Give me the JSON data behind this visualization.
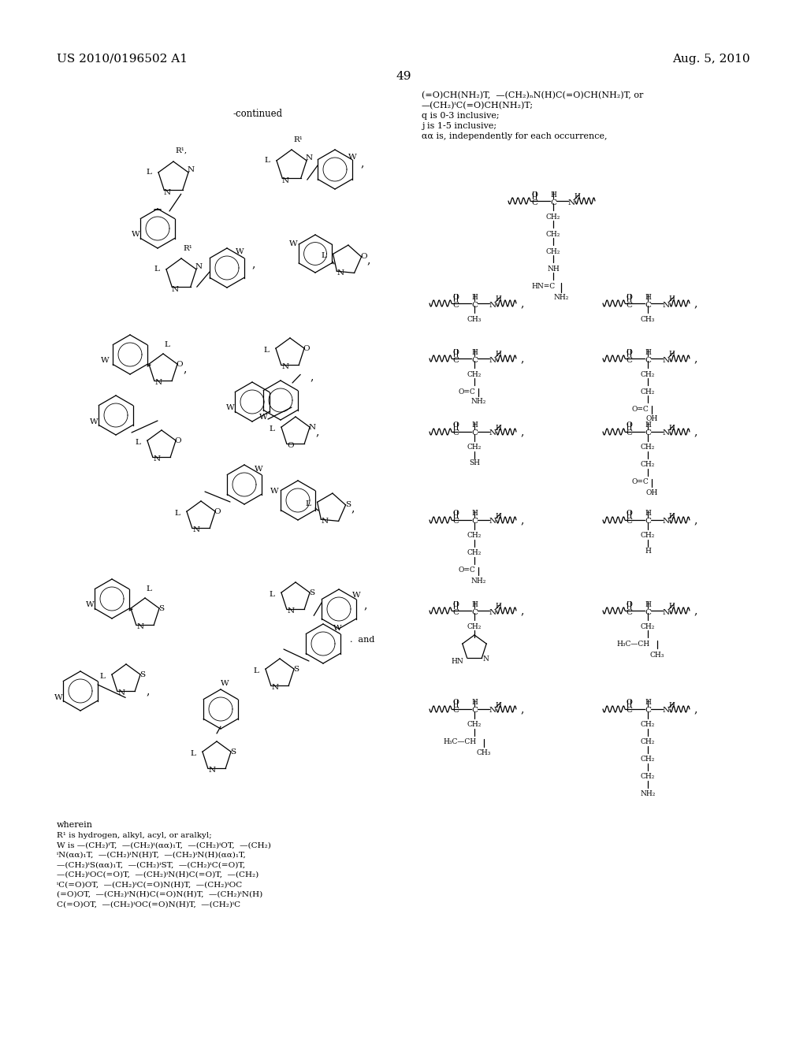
{
  "bg": "#ffffff",
  "header_left": "US 2010/0196502 A1",
  "header_right": "Aug. 5, 2010",
  "page_num": "49",
  "right_top_lines": [
    "(=O)CH(NH₂)T,  —(CH₂)ₙN(H)C(=O)CH(NH₂)T, or",
    "—(CH₂)ⁱC(=O)CH(NH₂)T;",
    "q is 0-3 inclusive;",
    "j is 1-5 inclusive;",
    "αα is, independently for each occurrence,"
  ],
  "bottom_text_lines": [
    "wherein",
    "R¹ is hydrogen, alkyl, acyl, or aralkyl;",
    "W is —(CH₂)ⁱT,  —(CH₂)ⁱ(αα)₁T,  —(CH₂)ⁱOT,  —(CH₂)",
    "ⁱN(αα)₁T,  —(CH₂)ⁱN(H)T,  —(CH₂)ⁱN(H)(αα)₁T,",
    "—(CH₂)ⁱS(αα)₁T,  —(CH₂)ⁱST,  —(CH₂)ⁱC(=O)T,",
    "—(CH₂)ⁱOC(=O)T,  —(CH₂)ⁱN(H)C(=O)T,  —(CH₂)",
    "ⁱC(=O)OT,  —(CH₂)ⁱC(=O)N(H)T,  —(CH₂)ⁱOC",
    "(=O)OT,  —(CH₂)ⁱN(H)C(=O)N(H)T,  —(CH₂)ⁱN(H)",
    "C(=O)OT,  —(CH₂)ⁱOC(=O)N(H)T,  —(CH₂)ⁱC"
  ]
}
